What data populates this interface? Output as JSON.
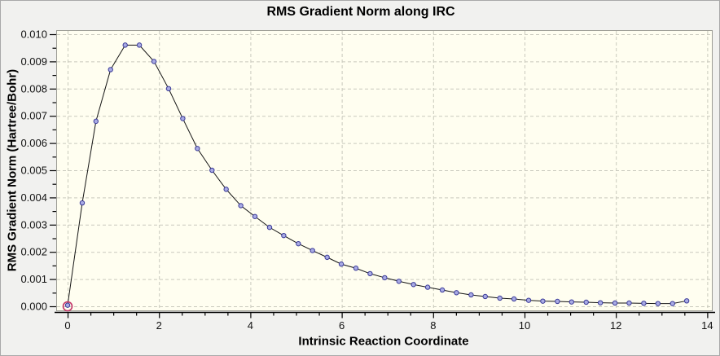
{
  "window": {
    "background": "#f1f1ef",
    "border_color": "#a9a9a9"
  },
  "chart_data": {
    "type": "line",
    "title": "RMS Gradient Norm along IRC",
    "xlabel": "Intrinsic Reaction Coordinate",
    "ylabel": "RMS Gradient Norm (Hartree/Bohr)",
    "xlim": [
      -0.25,
      14.1
    ],
    "ylim": [
      -0.00015,
      0.01015
    ],
    "x_major_ticks": [
      0,
      2,
      4,
      6,
      8,
      10,
      12,
      14
    ],
    "x_tick_labels": [
      "0",
      "2",
      "4",
      "6",
      "8",
      "10",
      "12",
      "14"
    ],
    "x_minor_tick_step": 0.5,
    "y_major_ticks": [
      0.0,
      0.001,
      0.002,
      0.003,
      0.004,
      0.005,
      0.006,
      0.007,
      0.008,
      0.009,
      0.01
    ],
    "y_tick_labels": [
      "0.000",
      "0.001",
      "0.002",
      "0.003",
      "0.004",
      "0.005",
      "0.006",
      "0.007",
      "0.008",
      "0.009",
      "0.010"
    ],
    "y_minor_tick_step": 0.0005,
    "grid": {
      "visible": true,
      "style": "dashed",
      "color": "#c9c9bd"
    },
    "plot_background": "#fffef0",
    "plot_border_color": "#9c9c94",
    "axis_color": "#000000",
    "series": [
      {
        "name": "rms-gradient-norm-along-irc",
        "line_color": "#141414",
        "marker_fill": "#a9abe4",
        "marker_stroke": "#3b3b99",
        "x": [
          0.0,
          0.32,
          0.62,
          0.94,
          1.26,
          1.57,
          1.89,
          2.21,
          2.52,
          2.84,
          3.16,
          3.47,
          3.79,
          4.1,
          4.42,
          4.73,
          5.05,
          5.36,
          5.68,
          5.99,
          6.31,
          6.62,
          6.94,
          7.25,
          7.57,
          7.88,
          8.2,
          8.51,
          8.83,
          9.14,
          9.46,
          9.77,
          10.09,
          10.4,
          10.72,
          11.03,
          11.35,
          11.66,
          11.98,
          12.29,
          12.61,
          12.92,
          13.24,
          13.55
        ],
        "y": [
          4e-05,
          0.0038,
          0.0068,
          0.0087,
          0.0096,
          0.0096,
          0.009,
          0.008,
          0.0069,
          0.0058,
          0.005,
          0.0043,
          0.0037,
          0.0033,
          0.0029,
          0.0026,
          0.0023,
          0.00205,
          0.0018,
          0.00155,
          0.0014,
          0.0012,
          0.00105,
          0.00092,
          0.0008,
          0.0007,
          0.0006,
          0.0005,
          0.00042,
          0.00036,
          0.0003,
          0.00027,
          0.00022,
          0.00019,
          0.00018,
          0.00016,
          0.00015,
          0.00013,
          0.00012,
          0.00012,
          0.00011,
          0.0001,
          0.0001,
          0.0002
        ]
      }
    ],
    "highlight_point": {
      "x": 0,
      "y": 0.0,
      "ring_color": "#c23366"
    }
  }
}
